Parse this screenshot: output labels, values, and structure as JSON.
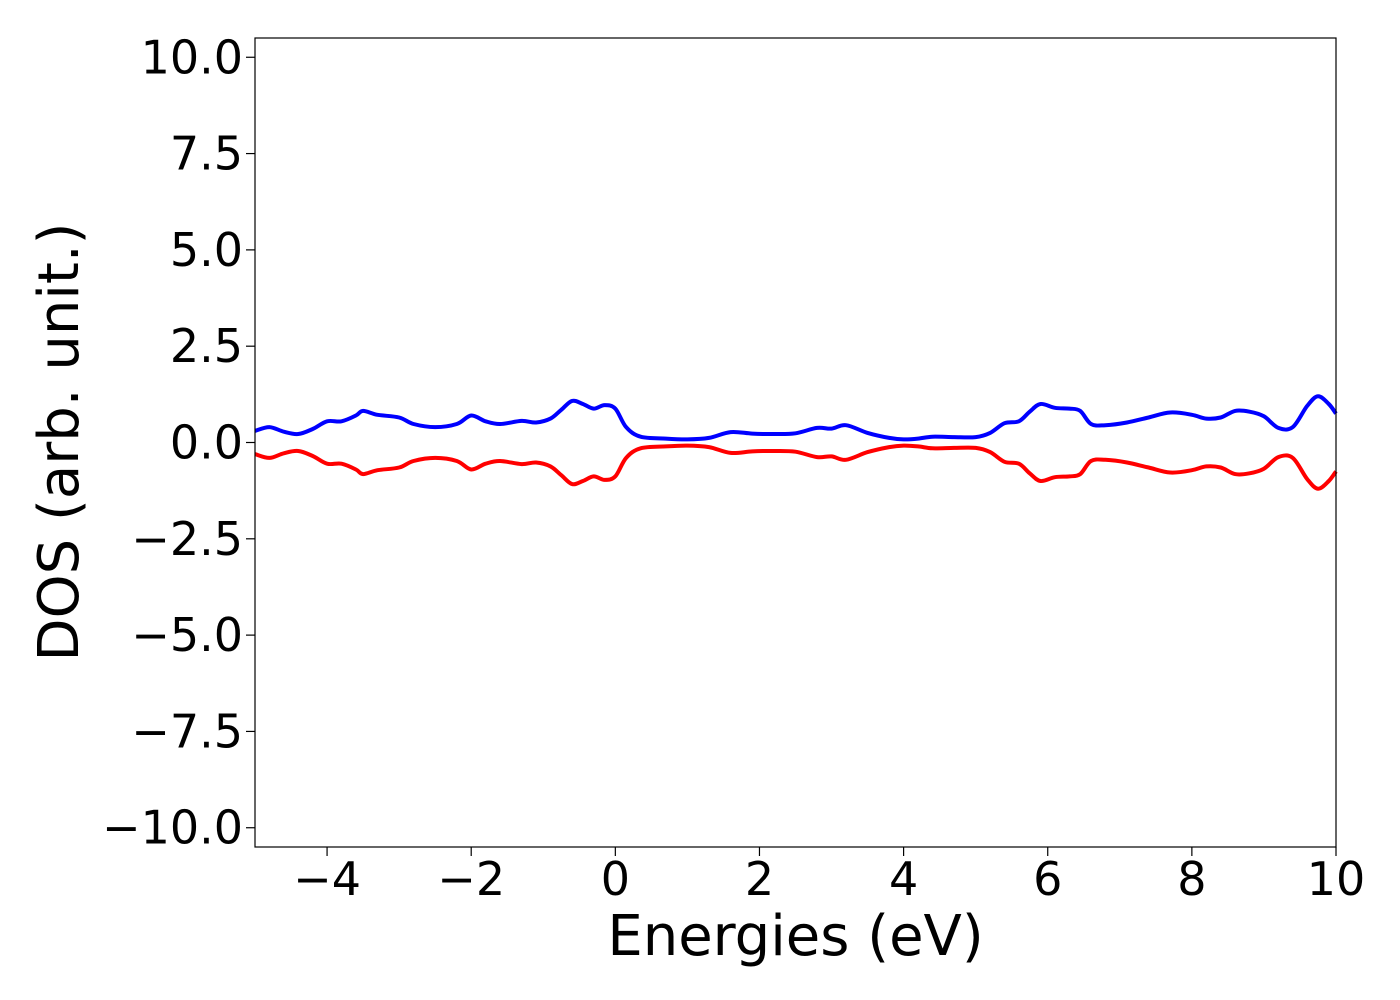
{
  "chart_data": {
    "type": "line",
    "title": "",
    "xlabel": "Energies (eV)",
    "ylabel": "DOS (arb. unit.)",
    "xlim": [
      -5,
      10
    ],
    "ylim": [
      -10.5,
      10.5
    ],
    "grid": false,
    "legend": "none",
    "x_ticks": [
      {
        "value": -4,
        "label": "−4"
      },
      {
        "value": -2,
        "label": "−2"
      },
      {
        "value": 0,
        "label": "0"
      },
      {
        "value": 2,
        "label": "2"
      },
      {
        "value": 4,
        "label": "4"
      },
      {
        "value": 6,
        "label": "6"
      },
      {
        "value": 8,
        "label": "8"
      },
      {
        "value": 10,
        "label": "10"
      }
    ],
    "y_ticks": [
      {
        "value": 10.0,
        "label": "10.0"
      },
      {
        "value": 7.5,
        "label": "7.5"
      },
      {
        "value": 5.0,
        "label": "5.0"
      },
      {
        "value": 2.5,
        "label": "2.5"
      },
      {
        "value": 0.0,
        "label": "0.0"
      },
      {
        "value": -2.5,
        "label": "−2.5"
      },
      {
        "value": -5.0,
        "label": "−5.0"
      },
      {
        "value": -7.5,
        "label": "−7.5"
      },
      {
        "value": -10.0,
        "label": "−10.0"
      }
    ],
    "series": [
      {
        "color": "#0000ff",
        "points": [
          [
            -5.0,
            0.3
          ],
          [
            -4.8,
            0.4
          ],
          [
            -4.6,
            0.28
          ],
          [
            -4.4,
            0.22
          ],
          [
            -4.2,
            0.35
          ],
          [
            -4.0,
            0.55
          ],
          [
            -3.8,
            0.55
          ],
          [
            -3.6,
            0.7
          ],
          [
            -3.5,
            0.82
          ],
          [
            -3.3,
            0.72
          ],
          [
            -3.0,
            0.65
          ],
          [
            -2.8,
            0.48
          ],
          [
            -2.5,
            0.4
          ],
          [
            -2.2,
            0.48
          ],
          [
            -2.0,
            0.7
          ],
          [
            -1.8,
            0.55
          ],
          [
            -1.6,
            0.48
          ],
          [
            -1.3,
            0.56
          ],
          [
            -1.1,
            0.52
          ],
          [
            -0.9,
            0.62
          ],
          [
            -0.75,
            0.85
          ],
          [
            -0.6,
            1.08
          ],
          [
            -0.45,
            1.0
          ],
          [
            -0.3,
            0.88
          ],
          [
            -0.15,
            0.97
          ],
          [
            0.0,
            0.88
          ],
          [
            0.15,
            0.4
          ],
          [
            0.35,
            0.15
          ],
          [
            0.7,
            0.1
          ],
          [
            1.0,
            0.08
          ],
          [
            1.3,
            0.12
          ],
          [
            1.6,
            0.27
          ],
          [
            1.9,
            0.23
          ],
          [
            2.2,
            0.22
          ],
          [
            2.5,
            0.24
          ],
          [
            2.8,
            0.38
          ],
          [
            3.0,
            0.36
          ],
          [
            3.2,
            0.45
          ],
          [
            3.5,
            0.25
          ],
          [
            3.8,
            0.12
          ],
          [
            4.0,
            0.08
          ],
          [
            4.2,
            0.1
          ],
          [
            4.4,
            0.15
          ],
          [
            4.7,
            0.14
          ],
          [
            5.0,
            0.14
          ],
          [
            5.2,
            0.25
          ],
          [
            5.4,
            0.5
          ],
          [
            5.6,
            0.55
          ],
          [
            5.75,
            0.8
          ],
          [
            5.9,
            1.0
          ],
          [
            6.1,
            0.9
          ],
          [
            6.3,
            0.88
          ],
          [
            6.45,
            0.82
          ],
          [
            6.6,
            0.48
          ],
          [
            6.8,
            0.45
          ],
          [
            7.1,
            0.52
          ],
          [
            7.4,
            0.65
          ],
          [
            7.7,
            0.78
          ],
          [
            8.0,
            0.72
          ],
          [
            8.2,
            0.62
          ],
          [
            8.4,
            0.65
          ],
          [
            8.6,
            0.82
          ],
          [
            8.8,
            0.8
          ],
          [
            9.0,
            0.68
          ],
          [
            9.2,
            0.38
          ],
          [
            9.4,
            0.4
          ],
          [
            9.6,
            0.95
          ],
          [
            9.75,
            1.2
          ],
          [
            9.9,
            1.0
          ],
          [
            10.0,
            0.75
          ]
        ]
      },
      {
        "color": "#ff0000",
        "points": [
          [
            -5.0,
            -0.3
          ],
          [
            -4.8,
            -0.4
          ],
          [
            -4.6,
            -0.28
          ],
          [
            -4.4,
            -0.22
          ],
          [
            -4.2,
            -0.35
          ],
          [
            -4.0,
            -0.55
          ],
          [
            -3.8,
            -0.55
          ],
          [
            -3.6,
            -0.7
          ],
          [
            -3.5,
            -0.82
          ],
          [
            -3.3,
            -0.72
          ],
          [
            -3.0,
            -0.65
          ],
          [
            -2.8,
            -0.48
          ],
          [
            -2.5,
            -0.4
          ],
          [
            -2.2,
            -0.48
          ],
          [
            -2.0,
            -0.7
          ],
          [
            -1.8,
            -0.55
          ],
          [
            -1.6,
            -0.48
          ],
          [
            -1.3,
            -0.56
          ],
          [
            -1.1,
            -0.52
          ],
          [
            -0.9,
            -0.62
          ],
          [
            -0.75,
            -0.85
          ],
          [
            -0.6,
            -1.08
          ],
          [
            -0.45,
            -1.0
          ],
          [
            -0.3,
            -0.88
          ],
          [
            -0.15,
            -0.97
          ],
          [
            0.0,
            -0.88
          ],
          [
            0.15,
            -0.4
          ],
          [
            0.35,
            -0.15
          ],
          [
            0.7,
            -0.1
          ],
          [
            1.0,
            -0.08
          ],
          [
            1.3,
            -0.12
          ],
          [
            1.6,
            -0.27
          ],
          [
            1.9,
            -0.23
          ],
          [
            2.2,
            -0.22
          ],
          [
            2.5,
            -0.24
          ],
          [
            2.8,
            -0.38
          ],
          [
            3.0,
            -0.36
          ],
          [
            3.2,
            -0.45
          ],
          [
            3.5,
            -0.25
          ],
          [
            3.8,
            -0.12
          ],
          [
            4.0,
            -0.08
          ],
          [
            4.2,
            -0.1
          ],
          [
            4.4,
            -0.15
          ],
          [
            4.7,
            -0.14
          ],
          [
            5.0,
            -0.14
          ],
          [
            5.2,
            -0.25
          ],
          [
            5.4,
            -0.5
          ],
          [
            5.6,
            -0.55
          ],
          [
            5.75,
            -0.8
          ],
          [
            5.9,
            -1.0
          ],
          [
            6.1,
            -0.9
          ],
          [
            6.3,
            -0.88
          ],
          [
            6.45,
            -0.82
          ],
          [
            6.6,
            -0.48
          ],
          [
            6.8,
            -0.45
          ],
          [
            7.1,
            -0.52
          ],
          [
            7.4,
            -0.65
          ],
          [
            7.7,
            -0.78
          ],
          [
            8.0,
            -0.72
          ],
          [
            8.2,
            -0.62
          ],
          [
            8.4,
            -0.65
          ],
          [
            8.6,
            -0.82
          ],
          [
            8.8,
            -0.8
          ],
          [
            9.0,
            -0.68
          ],
          [
            9.2,
            -0.38
          ],
          [
            9.4,
            -0.4
          ],
          [
            9.6,
            -0.95
          ],
          [
            9.75,
            -1.2
          ],
          [
            9.9,
            -1.0
          ],
          [
            10.0,
            -0.75
          ]
        ]
      }
    ]
  }
}
